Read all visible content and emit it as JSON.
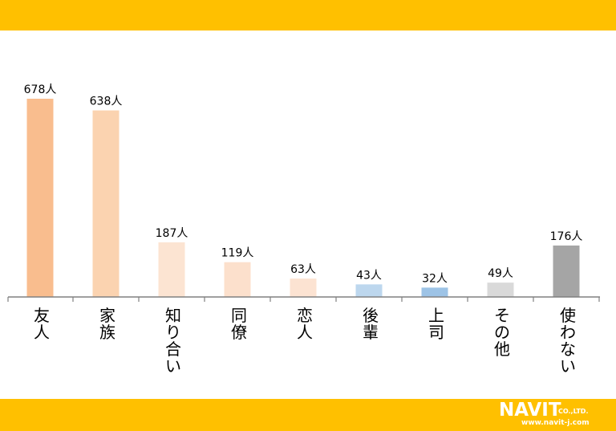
{
  "chart_data": {
    "type": "bar",
    "categories": [
      "友人",
      "家族",
      "知り合い",
      "同僚",
      "恋人",
      "後輩",
      "上司",
      "その他",
      "使わない"
    ],
    "values": [
      678,
      638,
      187,
      119,
      63,
      43,
      32,
      49,
      176
    ],
    "value_labels": [
      "678人",
      "638人",
      "187人",
      "119人",
      "63人",
      "43人",
      "32人",
      "49人",
      "176人"
    ],
    "colors": [
      "#F9BD8E",
      "#FBD3B0",
      "#FCE4D2",
      "#FCE0CC",
      "#FCE3D2",
      "#BDD7EE",
      "#9DC3E6",
      "#D9D9D9",
      "#A5A5A5"
    ],
    "ylim": [
      0,
      700
    ],
    "grid": false,
    "legend": "none"
  },
  "logo": {
    "brand": "NAVIT",
    "suffix": "CO.,LTD.",
    "url": "www.navit-j.com"
  },
  "theme": {
    "band_color": "#FFC000"
  }
}
